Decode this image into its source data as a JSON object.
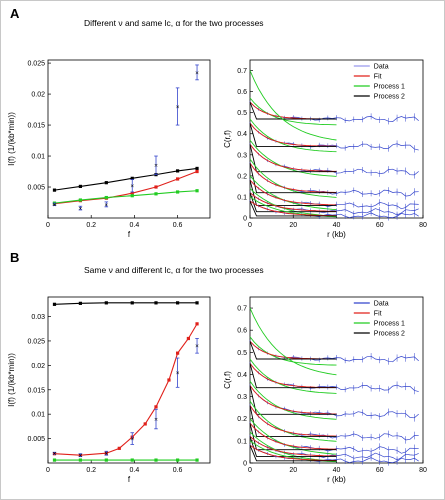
{
  "panels": [
    {
      "letter": "A",
      "caption": "Different ν and same lc, α for the two processes",
      "left": {
        "type": "line",
        "ylabel": "I(f) (1/(kb*min))",
        "xlabel": "f",
        "xlim": [
          0,
          0.75
        ],
        "ylim": [
          0,
          0.0255
        ],
        "x_ticks": [
          0,
          0.2,
          0.4,
          0.6
        ],
        "x_tick_labels": [
          "0",
          "0.2",
          "0.4",
          "0.6"
        ],
        "y_ticks": [
          0.005,
          0.01,
          0.015,
          0.02,
          0.025
        ],
        "y_tick_labels": [
          "0.005",
          "0.01",
          "0.015",
          "0.02",
          "0.025"
        ],
        "series": [
          {
            "color": "#000000",
            "x": [
              0.03,
              0.15,
              0.27,
              0.39,
              0.5,
              0.6,
              0.69
            ],
            "y": [
              0.0045,
              0.0051,
              0.0057,
              0.0064,
              0.007,
              0.0076,
              0.008
            ]
          },
          {
            "color": "#e0201a",
            "x": [
              0.03,
              0.15,
              0.27,
              0.39,
              0.5,
              0.6,
              0.69
            ],
            "y": [
              0.0023,
              0.0028,
              0.0032,
              0.004,
              0.005,
              0.0063,
              0.0075
            ]
          },
          {
            "color": "#22cc22",
            "x": [
              0.03,
              0.15,
              0.27,
              0.39,
              0.5,
              0.6,
              0.69
            ],
            "y": [
              0.0024,
              0.0029,
              0.0033,
              0.0036,
              0.0039,
              0.0042,
              0.0044
            ]
          }
        ],
        "data_points": {
          "color": "#3344cc",
          "x": [
            0.03,
            0.15,
            0.27,
            0.39,
            0.5,
            0.6,
            0.69
          ],
          "y": [
            0.0022,
            0.0016,
            0.0022,
            0.0052,
            0.0085,
            0.018,
            0.0235
          ],
          "err": [
            0.0002,
            0.0003,
            0.0004,
            0.001,
            0.0015,
            0.003,
            0.0012
          ]
        }
      },
      "right": {
        "ylabel": "C(r,f)",
        "xlabel": "r (kb)",
        "xlim": [
          0,
          80
        ],
        "ylim": [
          0,
          0.75
        ],
        "x_ticks": [
          0,
          20,
          40,
          60,
          80
        ],
        "x_tick_labels": [
          "0",
          "20",
          "40",
          "60",
          "80"
        ],
        "y_ticks": [
          0,
          0.1,
          0.2,
          0.3,
          0.4,
          0.5,
          0.6,
          0.7
        ],
        "y_tick_labels": [
          "0",
          "0.1",
          "0.2",
          "0.3",
          "0.4",
          "0.5",
          "0.6",
          "0.7"
        ],
        "legend": [
          "Data",
          "Fit",
          "Process 1",
          "Process 2"
        ],
        "legend_colors": [
          "#9999ee",
          "#e0201a",
          "#22cc22",
          "#000000"
        ]
      }
    },
    {
      "letter": "B",
      "caption": "Same ν and different lc, α for the two processes",
      "left": {
        "type": "line",
        "ylabel": "I(f) (1/(kb*min))",
        "xlabel": "f",
        "xlim": [
          0,
          0.75
        ],
        "ylim": [
          0,
          0.034
        ],
        "x_ticks": [
          0,
          0.2,
          0.4,
          0.6
        ],
        "x_tick_labels": [
          "0",
          "0.2",
          "0.4",
          "0.6"
        ],
        "y_ticks": [
          0.005,
          0.01,
          0.015,
          0.02,
          0.025,
          0.03
        ],
        "y_tick_labels": [
          "0.005",
          "0.01",
          "0.015",
          "0.02",
          "0.025",
          "0.03"
        ],
        "series": [
          {
            "color": "#000000",
            "x": [
              0.03,
              0.15,
              0.27,
              0.39,
              0.5,
              0.6,
              0.69
            ],
            "y": [
              0.0325,
              0.0327,
              0.0328,
              0.0328,
              0.0328,
              0.0328,
              0.0328
            ]
          },
          {
            "color": "#e0201a",
            "x": [
              0.03,
              0.15,
              0.27,
              0.33,
              0.39,
              0.45,
              0.5,
              0.56,
              0.6,
              0.65,
              0.69
            ],
            "y": [
              0.0019,
              0.0016,
              0.002,
              0.003,
              0.0053,
              0.008,
              0.0115,
              0.017,
              0.0225,
              0.0255,
              0.0285
            ]
          },
          {
            "color": "#22cc22",
            "x": [
              0.03,
              0.15,
              0.27,
              0.39,
              0.5,
              0.6,
              0.69
            ],
            "y": [
              0.0006,
              0.0006,
              0.0006,
              0.0006,
              0.0006,
              0.0006,
              0.0006
            ]
          }
        ],
        "data_points": {
          "color": "#3344cc",
          "x": [
            0.03,
            0.15,
            0.27,
            0.39,
            0.5,
            0.6,
            0.69
          ],
          "y": [
            0.002,
            0.0016,
            0.002,
            0.005,
            0.009,
            0.0185,
            0.024
          ],
          "err": [
            0.0002,
            0.0003,
            0.0004,
            0.0012,
            0.002,
            0.003,
            0.0015
          ]
        }
      },
      "right": {
        "ylabel": "C(r,f)",
        "xlabel": "r (kb)",
        "xlim": [
          0,
          80
        ],
        "ylim": [
          0,
          0.75
        ],
        "x_ticks": [
          0,
          20,
          40,
          60,
          80
        ],
        "x_tick_labels": [
          "0",
          "20",
          "40",
          "60",
          "80"
        ],
        "y_ticks": [
          0,
          0.1,
          0.2,
          0.3,
          0.4,
          0.5,
          0.6,
          0.7
        ],
        "y_tick_labels": [
          "0",
          "0.1",
          "0.2",
          "0.3",
          "0.4",
          "0.5",
          "0.6",
          "0.7"
        ],
        "legend": [
          "Data",
          "Fit",
          "Process 1",
          "Process 2"
        ],
        "legend_colors": [
          "#3344cc",
          "#e0201a",
          "#22cc22",
          "#000000"
        ]
      }
    }
  ],
  "chart_data": [
    {
      "type": "line",
      "panel": "A-left",
      "xlabel": "f",
      "ylabel": "I(f) (1/(kb*min))",
      "xlim": [
        0,
        0.75
      ],
      "ylim": [
        0,
        0.0255
      ],
      "x": [
        0.03,
        0.15,
        0.27,
        0.39,
        0.5,
        0.6,
        0.69
      ],
      "series": [
        {
          "values": [
            0.0045,
            0.0051,
            0.0057,
            0.0064,
            0.007,
            0.0076,
            0.008
          ]
        },
        {
          "values": [
            0.0023,
            0.0028,
            0.0032,
            0.004,
            0.005,
            0.0063,
            0.0075
          ]
        },
        {
          "values": [
            0.0024,
            0.0029,
            0.0033,
            0.0036,
            0.0039,
            0.0042,
            0.0044
          ]
        },
        {
          "values": [
            0.0022,
            0.0016,
            0.0022,
            0.0052,
            0.0085,
            0.018,
            0.0235
          ]
        }
      ]
    },
    {
      "type": "line",
      "panel": "A-right",
      "xlabel": "r (kb)",
      "ylabel": "C(r,f)",
      "xlim": [
        0,
        80
      ],
      "ylim": [
        0,
        0.75
      ],
      "legend": [
        "Data",
        "Fit",
        "Process 1",
        "Process 2"
      ]
    },
    {
      "type": "line",
      "panel": "B-left",
      "xlabel": "f",
      "ylabel": "I(f) (1/(kb*min))",
      "xlim": [
        0,
        0.75
      ],
      "ylim": [
        0,
        0.034
      ],
      "x": [
        0.03,
        0.15,
        0.27,
        0.39,
        0.5,
        0.6,
        0.69
      ],
      "series": [
        {
          "values": [
            0.0325,
            0.0327,
            0.0328,
            0.0328,
            0.0328,
            0.0328,
            0.0328
          ]
        },
        {
          "values": [
            0.0019,
            0.0016,
            0.002,
            0.0053,
            0.0115,
            0.0225,
            0.0285
          ]
        },
        {
          "values": [
            0.0006,
            0.0006,
            0.0006,
            0.0006,
            0.0006,
            0.0006,
            0.0006
          ]
        },
        {
          "values": [
            0.002,
            0.0016,
            0.002,
            0.005,
            0.009,
            0.0185,
            0.024
          ]
        }
      ]
    },
    {
      "type": "line",
      "panel": "B-right",
      "xlabel": "r (kb)",
      "ylabel": "C(r,f)",
      "xlim": [
        0,
        80
      ],
      "ylim": [
        0,
        0.75
      ],
      "legend": [
        "Data",
        "Fit",
        "Process 1",
        "Process 2"
      ]
    }
  ]
}
